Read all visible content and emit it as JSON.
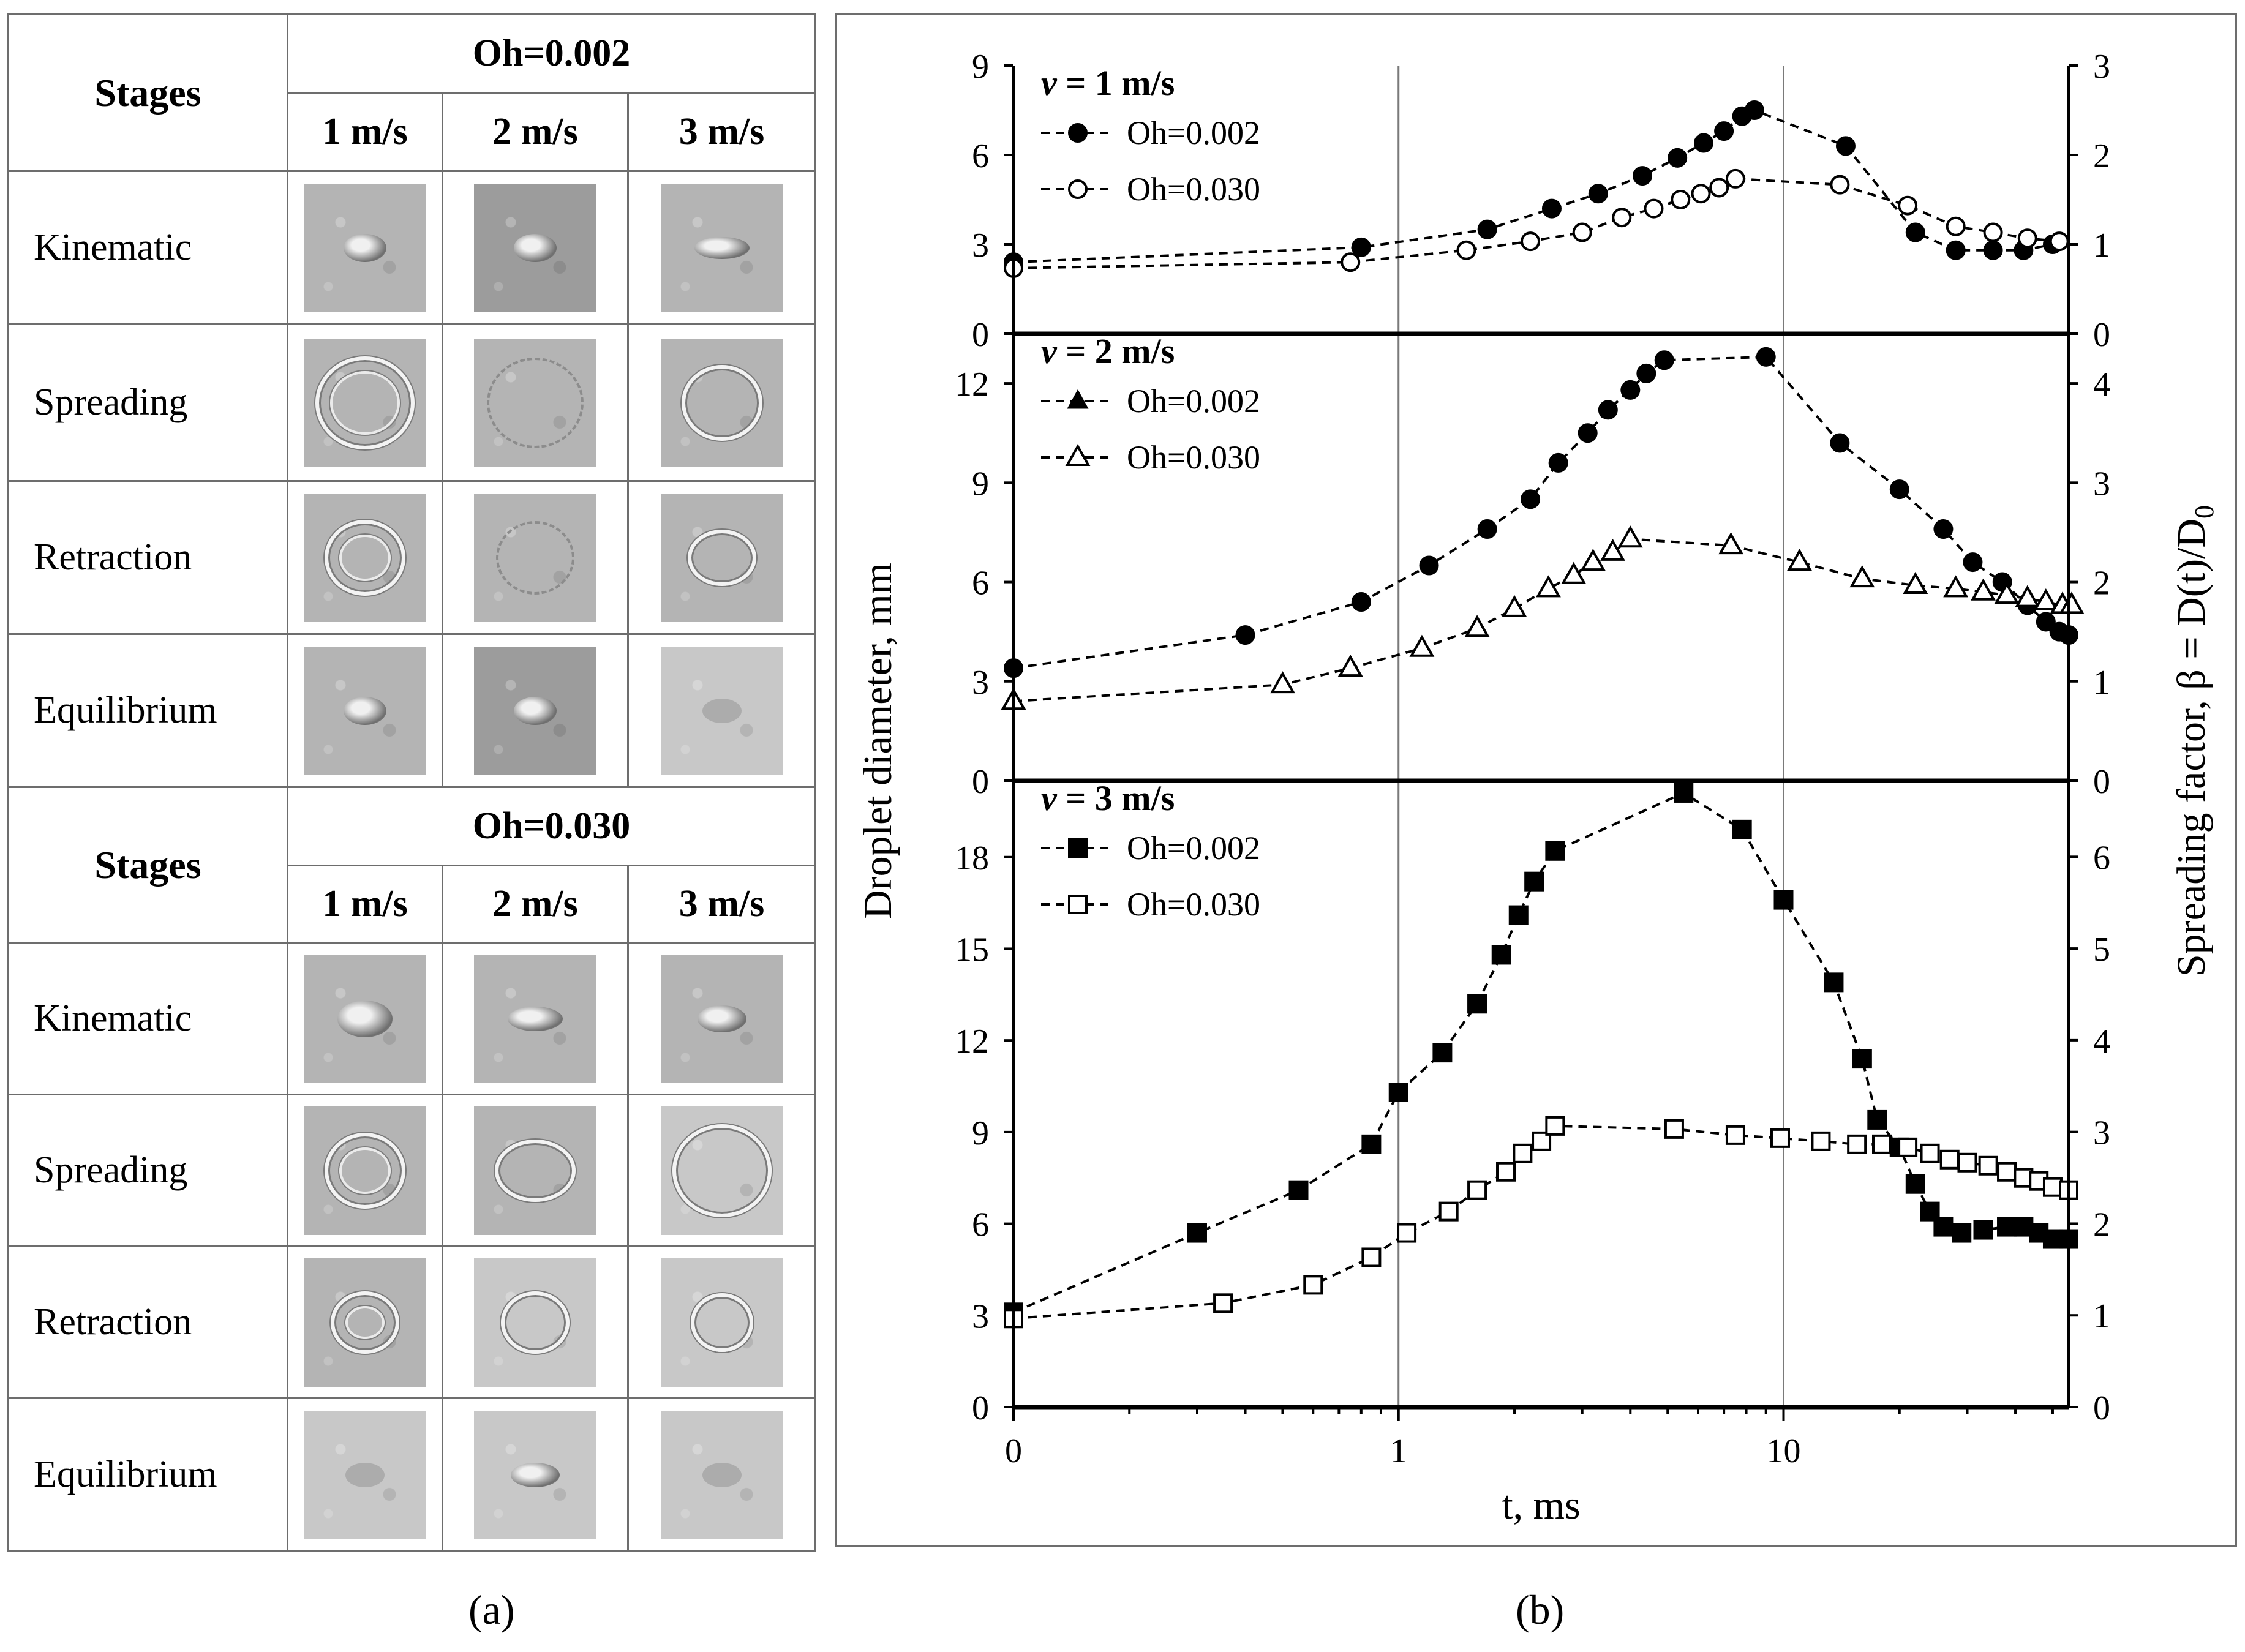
{
  "panel_a": {
    "tables": [
      {
        "stages_header": "Stages",
        "oh_header": "Oh=0.002",
        "velocities": [
          "1 m/s",
          "2 m/s",
          "3 m/s"
        ],
        "rows": [
          "Kinematic",
          "Spreading",
          "Retraction",
          "Equilibrium"
        ]
      },
      {
        "stages_header": "Stages",
        "oh_header": "Oh=0.030",
        "velocities": [
          "1 m/s",
          "2 m/s",
          "3 m/s"
        ],
        "rows": [
          "Kinematic",
          "Spreading",
          "Retraction",
          "Equilibrium"
        ]
      }
    ]
  },
  "captions": {
    "a": "(a)",
    "b": "(b)"
  },
  "chart_data": {
    "type": "line",
    "xlabel": "t, ms",
    "ylabel_left": "Droplet diameter, mm",
    "ylabel_right": "Spreading factor, β = D(t)/D",
    "ylabel_right_sub": "0",
    "x_ticks": [
      {
        "label": "0",
        "value": 0.1
      },
      {
        "label": "1",
        "value": 1
      },
      {
        "label": "10",
        "value": 10
      }
    ],
    "x_range": [
      0.1,
      55
    ],
    "x_scale": "log",
    "panels": [
      {
        "title_v": "v",
        "title_rest": " = 1 m/s",
        "y_range": [
          0,
          9
        ],
        "y_ticks": [
          "0",
          "3",
          "6",
          "9"
        ],
        "y2_range": [
          0,
          3
        ],
        "y2_ticks": [
          "0",
          "1",
          "2",
          "3"
        ],
        "series": [
          {
            "name": "Oh=0.002",
            "marker": "circle-filled",
            "points": [
              [
                0.1,
                2.4
              ],
              [
                0.8,
                2.9
              ],
              [
                1.7,
                3.5
              ],
              [
                2.5,
                4.2
              ],
              [
                3.3,
                4.7
              ],
              [
                4.3,
                5.3
              ],
              [
                5.3,
                5.9
              ],
              [
                6.2,
                6.4
              ],
              [
                7.0,
                6.8
              ],
              [
                7.8,
                7.3
              ],
              [
                8.4,
                7.5
              ],
              [
                14.5,
                6.3
              ],
              [
                22,
                3.4
              ],
              [
                28,
                2.8
              ],
              [
                35,
                2.8
              ],
              [
                42,
                2.8
              ],
              [
                50,
                3.0
              ]
            ]
          },
          {
            "name": "Oh=0.030",
            "marker": "circle-open",
            "points": [
              [
                0.1,
                2.2
              ],
              [
                0.75,
                2.4
              ],
              [
                1.5,
                2.8
              ],
              [
                2.2,
                3.1
              ],
              [
                3.0,
                3.4
              ],
              [
                3.8,
                3.9
              ],
              [
                4.6,
                4.2
              ],
              [
                5.4,
                4.5
              ],
              [
                6.1,
                4.7
              ],
              [
                6.8,
                4.9
              ],
              [
                7.5,
                5.2
              ],
              [
                14,
                5.0
              ],
              [
                21,
                4.3
              ],
              [
                28,
                3.6
              ],
              [
                35,
                3.4
              ],
              [
                43,
                3.2
              ],
              [
                52,
                3.1
              ]
            ]
          }
        ]
      },
      {
        "title_v": "v",
        "title_rest": " = 2 m/s",
        "y_range": [
          0,
          13.5
        ],
        "y_ticks": [
          "0",
          "3",
          "6",
          "9",
          "12"
        ],
        "y2_range": [
          0,
          4.5
        ],
        "y2_ticks": [
          "0",
          "1",
          "2",
          "3",
          "4"
        ],
        "series": [
          {
            "name": "Oh=0.002",
            "marker": "triangle-filled-circles",
            "points": [
              [
                0.1,
                3.4
              ],
              [
                0.4,
                4.4
              ],
              [
                0.8,
                5.4
              ],
              [
                1.2,
                6.5
              ],
              [
                1.7,
                7.6
              ],
              [
                2.2,
                8.5
              ],
              [
                2.6,
                9.6
              ],
              [
                3.1,
                10.5
              ],
              [
                3.5,
                11.2
              ],
              [
                4.0,
                11.8
              ],
              [
                4.4,
                12.3
              ],
              [
                4.9,
                12.7
              ],
              [
                9.0,
                12.8
              ],
              [
                14,
                10.2
              ],
              [
                20,
                8.8
              ],
              [
                26,
                7.6
              ],
              [
                31,
                6.6
              ],
              [
                37,
                6.0
              ],
              [
                43,
                5.3
              ],
              [
                48,
                4.8
              ],
              [
                52,
                4.5
              ],
              [
                55,
                4.4
              ]
            ]
          },
          {
            "name": "Oh=0.030",
            "marker": "triangle-open",
            "points": [
              [
                0.1,
                2.4
              ],
              [
                0.5,
                2.9
              ],
              [
                0.75,
                3.4
              ],
              [
                1.15,
                4.0
              ],
              [
                1.6,
                4.6
              ],
              [
                2.0,
                5.2
              ],
              [
                2.45,
                5.8
              ],
              [
                2.85,
                6.2
              ],
              [
                3.2,
                6.6
              ],
              [
                3.6,
                6.9
              ],
              [
                4.0,
                7.3
              ],
              [
                7.3,
                7.1
              ],
              [
                11,
                6.6
              ],
              [
                16,
                6.1
              ],
              [
                22,
                5.9
              ],
              [
                28,
                5.8
              ],
              [
                33,
                5.7
              ],
              [
                38,
                5.6
              ],
              [
                43,
                5.5
              ],
              [
                48,
                5.4
              ],
              [
                53,
                5.3
              ],
              [
                56,
                5.3
              ]
            ]
          }
        ]
      },
      {
        "title_v": "v",
        "title_rest": " = 3 m/s",
        "y_range": [
          0,
          20.5
        ],
        "y_ticks": [
          "0",
          "3",
          "6",
          "9",
          "12",
          "15",
          "18"
        ],
        "y2_range": [
          0,
          6.83
        ],
        "y2_ticks": [
          "0",
          "1",
          "2",
          "3",
          "4",
          "5",
          "6"
        ],
        "series": [
          {
            "name": "Oh=0.002",
            "marker": "square-filled",
            "points": [
              [
                0.1,
                3.1
              ],
              [
                0.3,
                5.7
              ],
              [
                0.55,
                7.1
              ],
              [
                0.85,
                8.6
              ],
              [
                1.0,
                10.3
              ],
              [
                1.3,
                11.6
              ],
              [
                1.6,
                13.2
              ],
              [
                1.85,
                14.8
              ],
              [
                2.05,
                16.1
              ],
              [
                2.25,
                17.2
              ],
              [
                2.55,
                18.2
              ],
              [
                5.5,
                20.1
              ],
              [
                7.8,
                18.9
              ],
              [
                10,
                16.6
              ],
              [
                13.5,
                13.9
              ],
              [
                16,
                11.4
              ],
              [
                17.5,
                9.4
              ],
              [
                20,
                8.5
              ],
              [
                22,
                7.3
              ],
              [
                24,
                6.4
              ],
              [
                26,
                5.9
              ],
              [
                29,
                5.7
              ],
              [
                33,
                5.8
              ],
              [
                38,
                5.9
              ],
              [
                42,
                5.9
              ],
              [
                46,
                5.7
              ],
              [
                50,
                5.5
              ],
              [
                55,
                5.5
              ]
            ]
          },
          {
            "name": "Oh=0.030",
            "marker": "square-open",
            "points": [
              [
                0.1,
                2.9
              ],
              [
                0.35,
                3.4
              ],
              [
                0.6,
                4.0
              ],
              [
                0.85,
                4.9
              ],
              [
                1.05,
                5.7
              ],
              [
                1.35,
                6.4
              ],
              [
                1.6,
                7.1
              ],
              [
                1.9,
                7.7
              ],
              [
                2.1,
                8.3
              ],
              [
                2.35,
                8.7
              ],
              [
                2.55,
                9.2
              ],
              [
                5.2,
                9.1
              ],
              [
                7.5,
                8.9
              ],
              [
                9.8,
                8.8
              ],
              [
                12.5,
                8.7
              ],
              [
                15.5,
                8.6
              ],
              [
                18,
                8.6
              ],
              [
                21,
                8.5
              ],
              [
                24,
                8.3
              ],
              [
                27,
                8.1
              ],
              [
                30,
                8.0
              ],
              [
                34,
                7.9
              ],
              [
                38,
                7.7
              ],
              [
                42,
                7.5
              ],
              [
                46,
                7.4
              ],
              [
                50,
                7.2
              ],
              [
                55,
                7.1
              ]
            ]
          }
        ]
      }
    ]
  }
}
